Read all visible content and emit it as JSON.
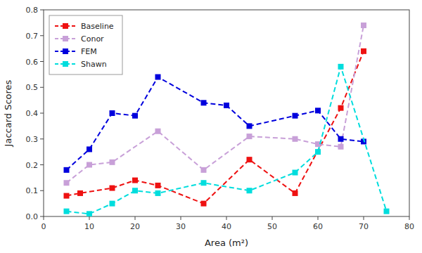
{
  "chart_data": {
    "type": "line",
    "x_label": "Area (m²)",
    "y_label": "Jaccard Scores",
    "xlim": [
      0,
      80
    ],
    "ylim": [
      0,
      0.8
    ],
    "xticks": [
      0,
      10,
      20,
      30,
      40,
      50,
      60,
      70,
      80
    ],
    "yticks": [
      {
        "value": 0,
        "label": "0.0"
      },
      0.1,
      0.2,
      0.3,
      0.4,
      0.5,
      0.6,
      0.7,
      0.8
    ],
    "grid": false,
    "legend": "upper left",
    "marker": "square",
    "line_style": "dashed",
    "series": [
      {
        "name": "Baseline",
        "color": "#EE1111",
        "x": [
          5,
          8,
          15,
          20,
          25,
          35,
          45,
          55,
          65,
          70
        ],
        "values": [
          0.08,
          0.09,
          0.11,
          0.14,
          0.12,
          0.05,
          0.22,
          0.09,
          0.42,
          0.64
        ]
      },
      {
        "name": "Conor",
        "color": "#C8A0D8",
        "x": [
          5,
          10,
          15,
          25,
          35,
          45,
          55,
          60,
          65,
          70
        ],
        "values": [
          0.13,
          0.2,
          0.21,
          0.33,
          0.18,
          0.31,
          0.3,
          0.28,
          0.27,
          0.74
        ]
      },
      {
        "name": "FEM",
        "color": "#0000DD",
        "x": [
          5,
          10,
          15,
          20,
          25,
          35,
          40,
          45,
          55,
          60,
          65,
          70
        ],
        "values": [
          0.18,
          0.26,
          0.4,
          0.39,
          0.54,
          0.44,
          0.43,
          0.35,
          0.39,
          0.41,
          0.3,
          0.29
        ]
      },
      {
        "name": "Shawn",
        "color": "#00DDDD",
        "x": [
          5,
          10,
          15,
          20,
          25,
          35,
          45,
          55,
          60,
          65,
          75
        ],
        "values": [
          0.02,
          0.01,
          0.05,
          0.1,
          0.09,
          0.13,
          0.1,
          0.17,
          0.25,
          0.58,
          0.02
        ]
      }
    ]
  }
}
